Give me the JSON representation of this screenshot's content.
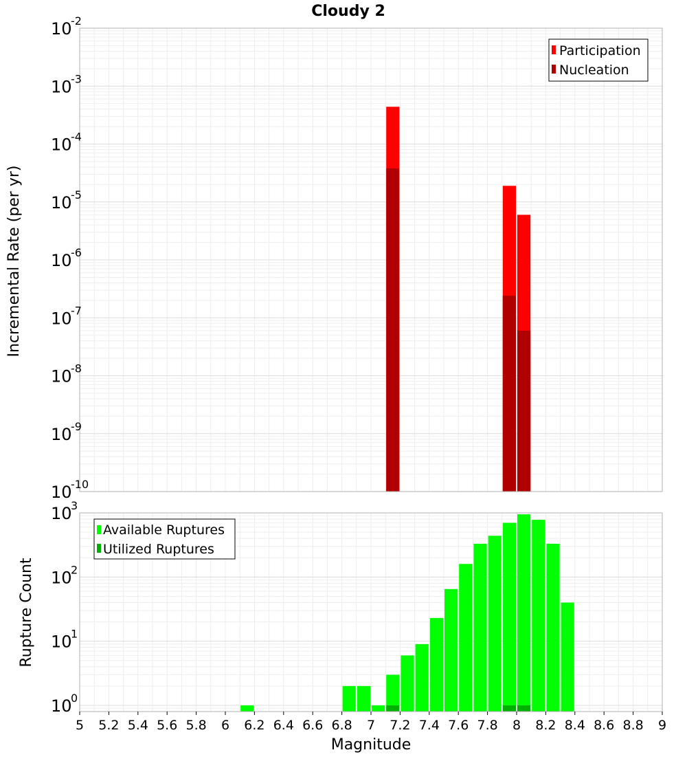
{
  "title": "Cloudy 2",
  "x_axis": {
    "label": "Magnitude",
    "range": [
      5,
      9
    ],
    "tick_labels": [
      "5",
      "5.2",
      "5.4",
      "5.6",
      "5.8",
      "6",
      "6.2",
      "6.4",
      "6.6",
      "6.8",
      "7",
      "7.2",
      "7.4",
      "7.6",
      "7.8",
      "8",
      "8.2",
      "8.4",
      "8.6",
      "8.8",
      "9"
    ]
  },
  "chart_data": [
    {
      "type": "bar",
      "title": "Cloudy 2",
      "ylabel": "Incremental Rate (per yr)",
      "yscale": "log",
      "ylim": [
        1e-10,
        0.01
      ],
      "y_tick_exponents": [
        "-10",
        "-9",
        "-8",
        "-7",
        "-6",
        "-5",
        "-4",
        "-3",
        "-2"
      ],
      "bar_width": 0.1,
      "legend_position": "top-right",
      "series": [
        {
          "name": "Participation",
          "color": "#ff0000",
          "points": [
            {
              "x": 7.15,
              "y": 0.00044
            },
            {
              "x": 7.95,
              "y": 1.9e-05
            },
            {
              "x": 8.05,
              "y": 6e-06
            }
          ]
        },
        {
          "name": "Nucleation",
          "color": "#b00000",
          "points": [
            {
              "x": 7.15,
              "y": 3.8e-05
            },
            {
              "x": 7.95,
              "y": 2.4e-07
            },
            {
              "x": 8.05,
              "y": 6e-08
            }
          ]
        }
      ]
    },
    {
      "type": "bar",
      "xlabel": "Magnitude",
      "ylabel": "Rupture Count",
      "yscale": "log",
      "ylim": [
        0.8,
        1000
      ],
      "y_tick_exponents": [
        "0",
        "1",
        "2",
        "3"
      ],
      "bar_width": 0.1,
      "legend_position": "top-left",
      "series": [
        {
          "name": "Available Ruptures",
          "color": "#00ff00",
          "points": [
            {
              "x": 6.15,
              "y": 1
            },
            {
              "x": 6.85,
              "y": 2
            },
            {
              "x": 6.95,
              "y": 2
            },
            {
              "x": 7.05,
              "y": 1
            },
            {
              "x": 7.15,
              "y": 3
            },
            {
              "x": 7.25,
              "y": 6
            },
            {
              "x": 7.35,
              "y": 9
            },
            {
              "x": 7.45,
              "y": 23
            },
            {
              "x": 7.55,
              "y": 65
            },
            {
              "x": 7.65,
              "y": 160
            },
            {
              "x": 7.75,
              "y": 330
            },
            {
              "x": 7.85,
              "y": 440
            },
            {
              "x": 7.95,
              "y": 700
            },
            {
              "x": 8.05,
              "y": 950
            },
            {
              "x": 8.15,
              "y": 780
            },
            {
              "x": 8.25,
              "y": 330
            },
            {
              "x": 8.35,
              "y": 40
            }
          ]
        },
        {
          "name": "Utilized Ruptures",
          "color": "#00b000",
          "points": [
            {
              "x": 7.15,
              "y": 1
            },
            {
              "x": 7.95,
              "y": 1
            },
            {
              "x": 8.05,
              "y": 1
            }
          ]
        }
      ]
    }
  ]
}
